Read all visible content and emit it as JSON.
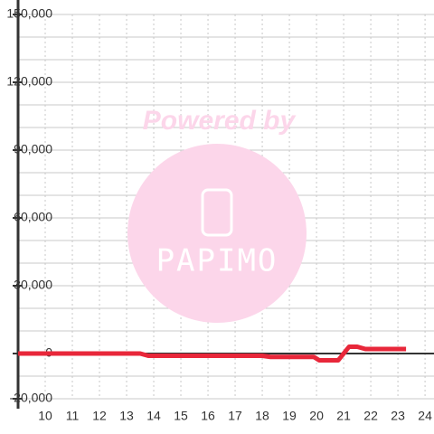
{
  "chart_data": {
    "type": "line",
    "watermark": {
      "top": "Powered by",
      "bottom": "PAPIMO"
    },
    "x": [
      9,
      13.5,
      13.8,
      18,
      18.3,
      19.9,
      20.1,
      20.8,
      21.2,
      21.5,
      21.8,
      23.3
    ],
    "series": [
      {
        "color": "#e8273a",
        "values": [
          0,
          0,
          -1000,
          -1000,
          -1500,
          -1500,
          -3000,
          -3000,
          3000,
          3000,
          2000,
          2000
        ]
      }
    ],
    "xlim": [
      9,
      24.33
    ],
    "xticks": [
      10,
      11,
      12,
      13,
      14,
      15,
      16,
      17,
      18,
      19,
      20,
      21,
      22,
      23,
      24
    ],
    "ylim": [
      -20000,
      150000
    ],
    "yticks": [
      {
        "value": -20000,
        "label": "-20,000"
      },
      0,
      {
        "value": 30000,
        "label": "30,000"
      },
      {
        "value": 60000,
        "label": "60,000"
      },
      {
        "value": 90000,
        "label": "90,000"
      },
      {
        "value": 120000,
        "label": "120,000"
      },
      {
        "value": 150000,
        "label": "150,000"
      }
    ],
    "ygrid_step": 10000,
    "grid": true
  }
}
